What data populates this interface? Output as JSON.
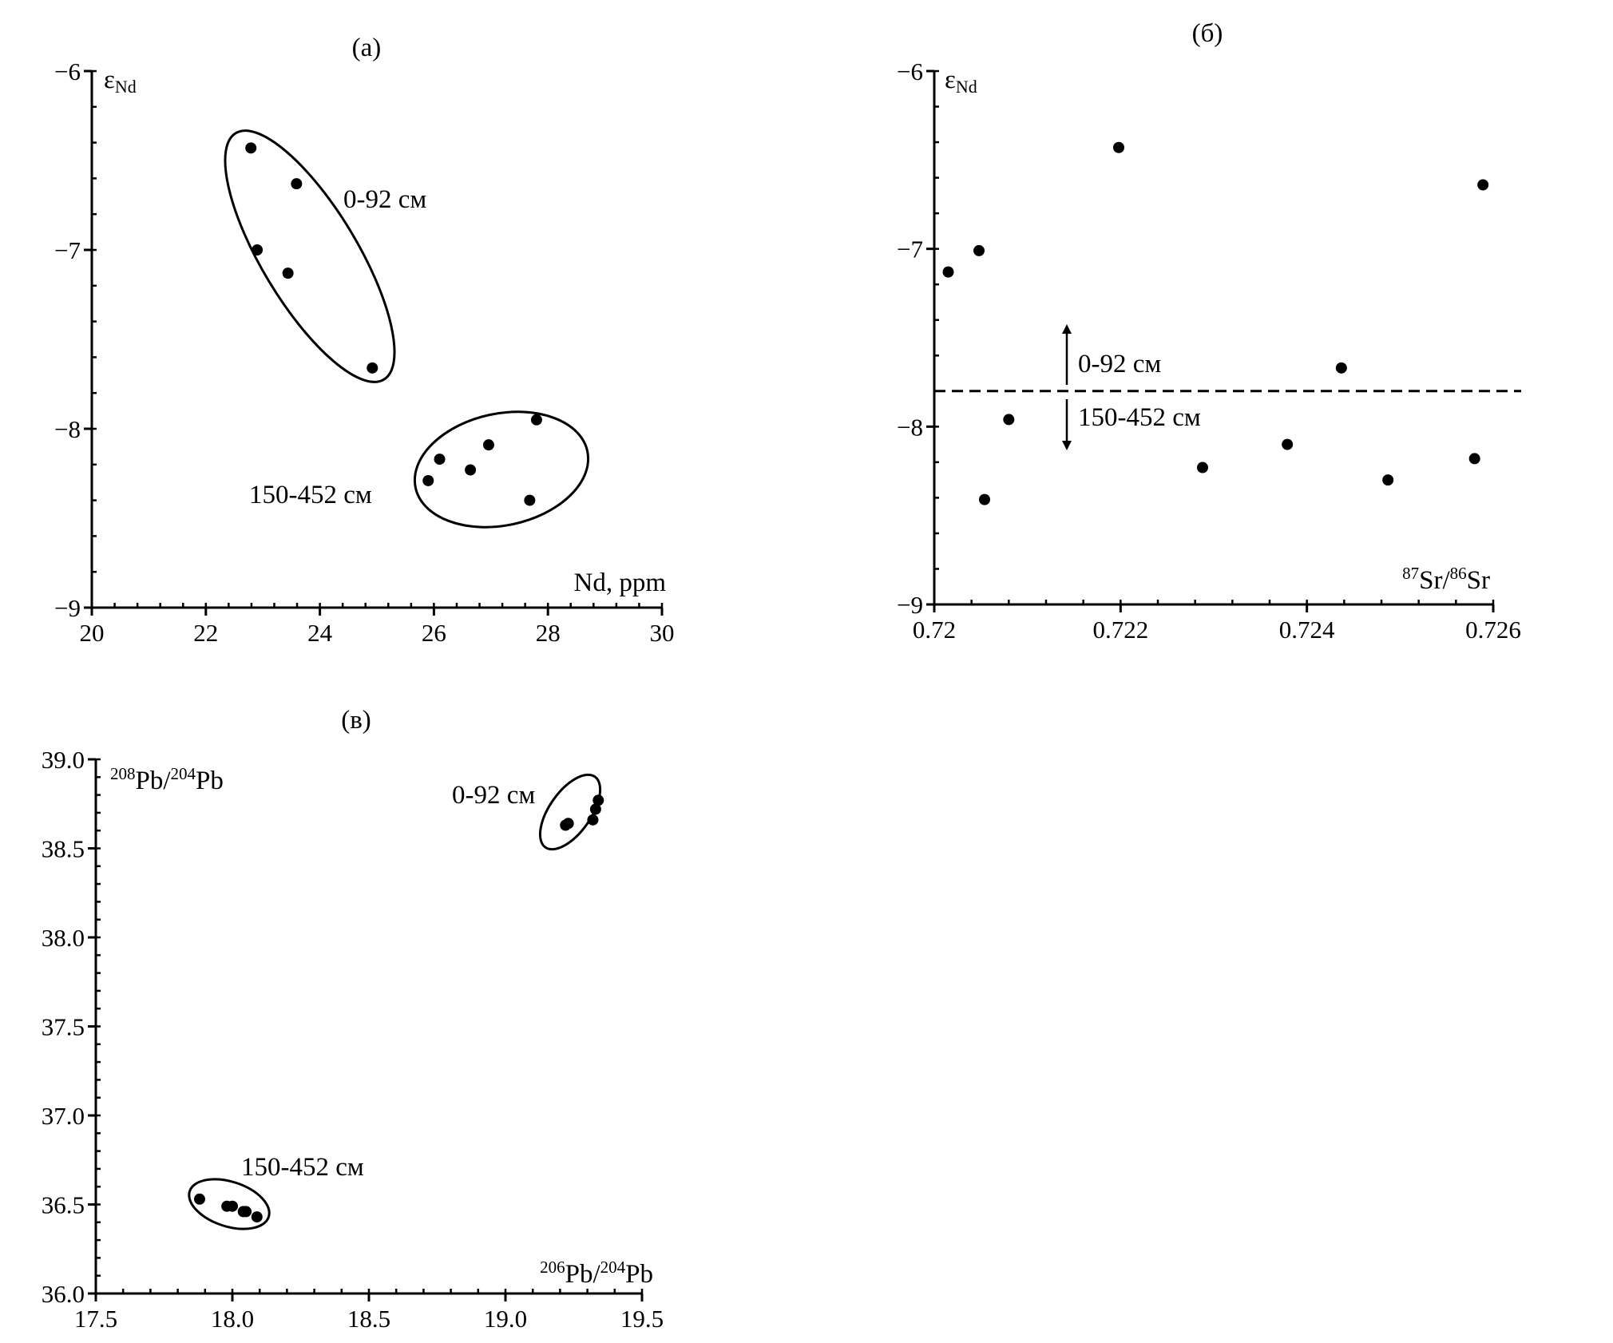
{
  "chart_data": [
    {
      "type": "scatter",
      "title": "(а)",
      "xlabel": "Nd, ppm",
      "ylabel": "εNd",
      "ylabel_main": "ε",
      "ylabel_sub": "Nd",
      "xlim": [
        20,
        30
      ],
      "ylim": [
        -9,
        -6
      ],
      "xticks": [
        20,
        22,
        24,
        26,
        28,
        30
      ],
      "yticks": [
        -6,
        -7,
        -8,
        -9
      ],
      "ytick_labels": [
        "−6",
        "−7",
        "−8",
        "−9"
      ],
      "grid": false,
      "series": [
        {
          "name": "0-92 см",
          "x": [
            22.79,
            23.59,
            22.9,
            23.44,
            24.92
          ],
          "y": [
            -6.43,
            -6.63,
            -7.0,
            -7.13,
            -7.66
          ]
        },
        {
          "name": "150-452 см",
          "x": [
            27.8,
            26.96,
            26.1,
            26.64,
            25.9,
            27.68
          ],
          "y": [
            -7.95,
            -8.09,
            -8.17,
            -8.23,
            -8.29,
            -8.4
          ]
        }
      ]
    },
    {
      "type": "scatter",
      "title": "(б)",
      "xlabel": "87Sr/86Sr",
      "xlabel_parts": [
        "87",
        "Sr/",
        "86",
        "Sr"
      ],
      "ylabel": "εNd",
      "ylabel_main": "ε",
      "ylabel_sub": "Nd",
      "xlim": [
        0.72,
        0.726
      ],
      "ylim": [
        -9,
        -6
      ],
      "xticks": [
        0.72,
        0.722,
        0.724,
        0.726
      ],
      "xtick_labels": [
        "0.72",
        "0.722",
        "0.724",
        "0.726"
      ],
      "yticks": [
        -6,
        -7,
        -8,
        -9
      ],
      "ytick_labels": [
        "−6",
        "−7",
        "−8",
        "−9"
      ],
      "grid": false,
      "divider_y": -7.8,
      "annotations": [
        "0-92 см",
        "150-452 см"
      ],
      "points": {
        "x": [
          0.72015,
          0.72048,
          0.72198,
          0.72589,
          0.7208,
          0.72054,
          0.72288,
          0.72379,
          0.72437,
          0.72487,
          0.7258
        ],
        "y": [
          -7.13,
          -7.01,
          -6.43,
          -6.64,
          -7.96,
          -8.41,
          -8.23,
          -8.1,
          -7.67,
          -8.3,
          -8.18
        ]
      }
    },
    {
      "type": "scatter",
      "title": "(в)",
      "xlabel": "206Pb/204Pb",
      "xlabel_parts": [
        "206",
        "Pb/",
        "204",
        "Pb"
      ],
      "ylabel": "208Pb/204Pb",
      "ylabel_parts": [
        "208",
        "Pb/",
        "204",
        "Pb"
      ],
      "xlim": [
        17.5,
        19.5
      ],
      "ylim": [
        36.0,
        39.0
      ],
      "xticks": [
        17.5,
        18.0,
        18.5,
        19.0,
        19.5
      ],
      "xtick_labels": [
        "17.5",
        "18.0",
        "18.5",
        "19.0",
        "19.5"
      ],
      "yticks": [
        39.0,
        38.5,
        38.0,
        37.5,
        37.0,
        36.5,
        36.0
      ],
      "ytick_labels": [
        "39.0",
        "38.5",
        "38.0",
        "37.5",
        "37.0",
        "36.5",
        "36.0"
      ],
      "grid": false,
      "series": [
        {
          "name": "0-92 см",
          "x": [
            19.22,
            19.23,
            19.32,
            19.33,
            19.34
          ],
          "y": [
            38.63,
            38.64,
            38.66,
            38.72,
            38.77
          ]
        },
        {
          "name": "150-452 см",
          "x": [
            17.88,
            17.98,
            18.0,
            18.04,
            18.05,
            18.09
          ],
          "y": [
            36.53,
            36.49,
            36.49,
            36.46,
            36.46,
            36.43
          ]
        }
      ]
    }
  ]
}
